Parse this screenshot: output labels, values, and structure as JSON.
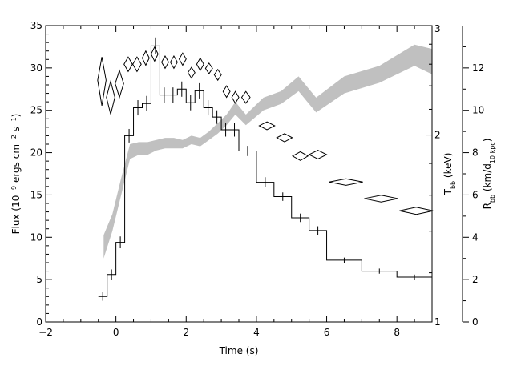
{
  "chart_data": {
    "type": "line",
    "xlabel": "Time (s)",
    "xlim": [
      -2,
      9
    ],
    "x_ticks": [
      -2,
      0,
      2,
      4,
      6,
      8
    ],
    "y_left": {
      "label_parts": [
        "Flux (10",
        "−9",
        " ergs cm",
        "−2",
        " s",
        "−1",
        ")"
      ],
      "lim": [
        0,
        35
      ],
      "ticks": [
        0,
        5,
        10,
        15,
        20,
        25,
        30,
        35
      ]
    },
    "y_kT": {
      "label_parts": [
        "T",
        "bb",
        " (keV)"
      ],
      "scale": "log",
      "lim": [
        1,
        3
      ],
      "ticks": [
        1,
        2,
        3
      ]
    },
    "y_R": {
      "label_parts": [
        "R",
        "bb",
        " (km/d",
        "10 kpc",
        ")"
      ],
      "lim": [
        0,
        14
      ],
      "ticks": [
        0,
        2,
        4,
        6,
        8,
        10,
        12
      ]
    },
    "series": [
      {
        "kind": "step",
        "axis": "flux",
        "bins": [
          {
            "x0": -0.5,
            "x1": -0.25,
            "y": 3.0,
            "err": 0.5
          },
          {
            "x0": -0.25,
            "x1": 0.0,
            "y": 5.6,
            "err": 0.6
          },
          {
            "x0": 0.0,
            "x1": 0.25,
            "y": 9.4,
            "err": 0.7
          },
          {
            "x0": 0.25,
            "x1": 0.5,
            "y": 22.0,
            "err": 0.8
          },
          {
            "x0": 0.5,
            "x1": 0.75,
            "y": 25.3,
            "err": 0.9
          },
          {
            "x0": 0.75,
            "x1": 1.0,
            "y": 25.8,
            "err": 0.9
          },
          {
            "x0": 1.0,
            "x1": 1.25,
            "y": 32.6,
            "err": 1.0
          },
          {
            "x0": 1.25,
            "x1": 1.5,
            "y": 26.8,
            "err": 0.9
          },
          {
            "x0": 1.5,
            "x1": 1.75,
            "y": 26.8,
            "err": 0.9
          },
          {
            "x0": 1.75,
            "x1": 2.0,
            "y": 27.5,
            "err": 0.9
          },
          {
            "x0": 2.0,
            "x1": 2.25,
            "y": 25.9,
            "err": 0.9
          },
          {
            "x0": 2.25,
            "x1": 2.5,
            "y": 27.3,
            "err": 0.9
          },
          {
            "x0": 2.5,
            "x1": 2.75,
            "y": 25.3,
            "err": 0.9
          },
          {
            "x0": 2.75,
            "x1": 3.0,
            "y": 24.2,
            "err": 0.8
          },
          {
            "x0": 3.0,
            "x1": 3.25,
            "y": 22.7,
            "err": 0.8
          },
          {
            "x0": 3.25,
            "x1": 3.5,
            "y": 22.7,
            "err": 0.8
          },
          {
            "x0": 3.5,
            "x1": 4.0,
            "y": 20.2,
            "err": 0.6
          },
          {
            "x0": 4.0,
            "x1": 4.5,
            "y": 16.5,
            "err": 0.6
          },
          {
            "x0": 4.5,
            "x1": 5.0,
            "y": 14.8,
            "err": 0.5
          },
          {
            "x0": 5.0,
            "x1": 5.5,
            "y": 12.3,
            "err": 0.5
          },
          {
            "x0": 5.5,
            "x1": 6.0,
            "y": 10.8,
            "err": 0.5
          },
          {
            "x0": 6.0,
            "x1": 7.0,
            "y": 7.3,
            "err": 0.3
          },
          {
            "x0": 7.0,
            "x1": 8.0,
            "y": 6.0,
            "err": 0.3
          },
          {
            "x0": 8.0,
            "x1": 9.0,
            "y": 5.3,
            "err": 0.3
          }
        ]
      },
      {
        "kind": "diamonds",
        "axis": "kT",
        "points": [
          {
            "x": -0.4,
            "y": 2.45,
            "dx": 0.12,
            "dy": 0.22
          },
          {
            "x": -0.15,
            "y": 2.3,
            "dx": 0.12,
            "dy": 0.14
          },
          {
            "x": 0.1,
            "y": 2.42,
            "dx": 0.12,
            "dy": 0.12
          },
          {
            "x": 0.35,
            "y": 2.6,
            "dx": 0.12,
            "dy": 0.07
          },
          {
            "x": 0.6,
            "y": 2.6,
            "dx": 0.12,
            "dy": 0.07
          },
          {
            "x": 0.85,
            "y": 2.66,
            "dx": 0.1,
            "dy": 0.07
          },
          {
            "x": 1.1,
            "y": 2.7,
            "dx": 0.1,
            "dy": 0.07
          },
          {
            "x": 1.4,
            "y": 2.62,
            "dx": 0.1,
            "dy": 0.06
          },
          {
            "x": 1.65,
            "y": 2.62,
            "dx": 0.1,
            "dy": 0.06
          },
          {
            "x": 1.9,
            "y": 2.65,
            "dx": 0.1,
            "dy": 0.06
          },
          {
            "x": 2.15,
            "y": 2.52,
            "dx": 0.1,
            "dy": 0.05
          },
          {
            "x": 2.4,
            "y": 2.6,
            "dx": 0.1,
            "dy": 0.06
          },
          {
            "x": 2.65,
            "y": 2.56,
            "dx": 0.1,
            "dy": 0.05
          },
          {
            "x": 2.9,
            "y": 2.5,
            "dx": 0.1,
            "dy": 0.05
          },
          {
            "x": 3.15,
            "y": 2.35,
            "dx": 0.1,
            "dy": 0.05
          },
          {
            "x": 3.4,
            "y": 2.3,
            "dx": 0.1,
            "dy": 0.05
          },
          {
            "x": 3.7,
            "y": 2.3,
            "dx": 0.12,
            "dy": 0.05
          },
          {
            "x": 4.3,
            "y": 2.07,
            "dx": 0.22,
            "dy": 0.03
          },
          {
            "x": 4.8,
            "y": 1.98,
            "dx": 0.22,
            "dy": 0.03
          },
          {
            "x": 5.25,
            "y": 1.85,
            "dx": 0.22,
            "dy": 0.03
          },
          {
            "x": 5.75,
            "y": 1.86,
            "dx": 0.25,
            "dy": 0.03
          },
          {
            "x": 6.55,
            "y": 1.68,
            "dx": 0.48,
            "dy": 0.02
          },
          {
            "x": 7.55,
            "y": 1.58,
            "dx": 0.48,
            "dy": 0.02
          },
          {
            "x": 8.55,
            "y": 1.51,
            "dx": 0.48,
            "dy": 0.02
          }
        ]
      },
      {
        "kind": "band",
        "axis": "R",
        "color": "#c0c0c0",
        "points": [
          {
            "x": -0.35,
            "lo": 3.0,
            "hi": 4.1
          },
          {
            "x": -0.1,
            "lo": 4.3,
            "hi": 5.1
          },
          {
            "x": 0.15,
            "lo": 6.0,
            "hi": 6.8
          },
          {
            "x": 0.4,
            "lo": 7.7,
            "hi": 8.4
          },
          {
            "x": 0.65,
            "lo": 7.9,
            "hi": 8.5
          },
          {
            "x": 0.9,
            "lo": 7.9,
            "hi": 8.5
          },
          {
            "x": 1.15,
            "lo": 8.1,
            "hi": 8.6
          },
          {
            "x": 1.4,
            "lo": 8.2,
            "hi": 8.7
          },
          {
            "x": 1.65,
            "lo": 8.2,
            "hi": 8.7
          },
          {
            "x": 1.9,
            "lo": 8.2,
            "hi": 8.6
          },
          {
            "x": 2.15,
            "lo": 8.4,
            "hi": 8.8
          },
          {
            "x": 2.4,
            "lo": 8.3,
            "hi": 8.7
          },
          {
            "x": 2.65,
            "lo": 8.6,
            "hi": 9.0
          },
          {
            "x": 2.9,
            "lo": 8.9,
            "hi": 9.4
          },
          {
            "x": 3.15,
            "lo": 9.3,
            "hi": 9.8
          },
          {
            "x": 3.4,
            "lo": 9.8,
            "hi": 10.4
          },
          {
            "x": 3.7,
            "lo": 9.3,
            "hi": 9.8
          },
          {
            "x": 4.2,
            "lo": 10.0,
            "hi": 10.6
          },
          {
            "x": 4.7,
            "lo": 10.3,
            "hi": 10.9
          },
          {
            "x": 5.2,
            "lo": 10.9,
            "hi": 11.6
          },
          {
            "x": 5.7,
            "lo": 9.9,
            "hi": 10.6
          },
          {
            "x": 6.5,
            "lo": 10.8,
            "hi": 11.6
          },
          {
            "x": 7.5,
            "lo": 11.3,
            "hi": 12.1
          },
          {
            "x": 8.5,
            "lo": 12.1,
            "hi": 13.1
          },
          {
            "x": 9.0,
            "lo": 11.7,
            "hi": 12.9
          }
        ]
      }
    ],
    "grid": false,
    "legend": "none"
  }
}
